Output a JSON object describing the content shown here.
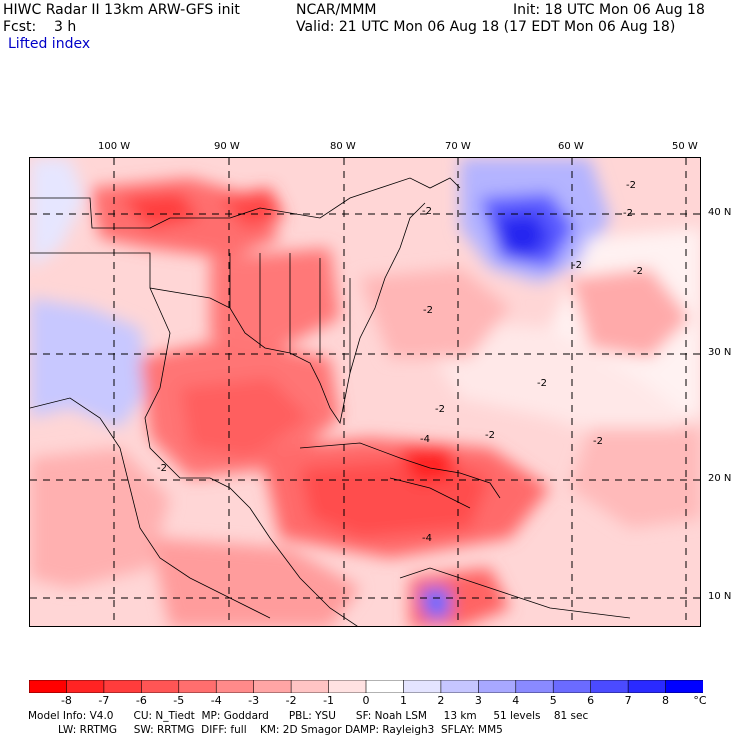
{
  "header": {
    "model_title": "HIWC Radar II 13km ARW-GFS init",
    "org": "NCAR/MMM",
    "init": "Init: 18 UTC Mon 06 Aug 18",
    "forecast": "Fcst:    3 h",
    "valid": "Valid: 21 UTC Mon 06 Aug 18 (17 EDT Mon 06 Aug 18)",
    "field": "Lifted index"
  },
  "map": {
    "lon_labels": [
      "100 W",
      "90 W",
      "80 W",
      "70 W",
      "60 W",
      "50 W"
    ],
    "lat_labels": [
      "40 N",
      "30 N",
      "20 N",
      "10 N"
    ],
    "contour_label": "-2",
    "contour_label_minus4": "-4",
    "colors": {
      "land_boundary": "#000000",
      "grid": "#000000"
    }
  },
  "colorbar": {
    "labels": [
      "-8",
      "-7",
      "-6",
      "-5",
      "-4",
      "-3",
      "-2",
      "-1",
      "0",
      "1",
      "2",
      "3",
      "4",
      "5",
      "6",
      "7",
      "8"
    ],
    "unit": "°C",
    "colors": [
      "#ff0000",
      "#ff2323",
      "#ff3c3c",
      "#ff5555",
      "#ff6e6e",
      "#ff8a8a",
      "#ffa5a5",
      "#ffc4c4",
      "#ffe2e2",
      "#ffffff",
      "#e4e4ff",
      "#c6c6ff",
      "#a8a8ff",
      "#8a8aff",
      "#6b6bff",
      "#4b4bff",
      "#2a2aff",
      "#0000ff"
    ]
  },
  "footer": {
    "line1": "Model Info: V4.0      CU: N_Tiedt  MP: Goddard      PBL: YSU      SF: Noah LSM     13 km     51 levels    81 sec",
    "line2": "         LW: RRTMG     SW: RRTMG  DIFF: full    KM: 2D Smagor DAMP: Rayleigh3  SFLAY: MM5"
  }
}
